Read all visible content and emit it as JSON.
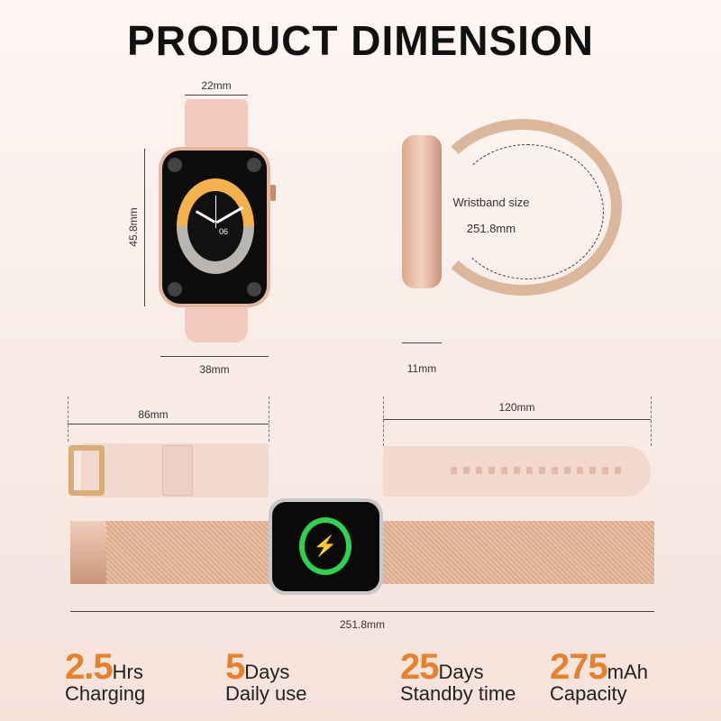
{
  "title": "PRODUCT DIMENSION",
  "front": {
    "band_width": "22mm",
    "height": "45.8mm",
    "width": "38mm",
    "time_digit": "06"
  },
  "side": {
    "wristband_label": "Wristband size",
    "wristband_value": "251.8mm",
    "thickness": "11mm"
  },
  "bands": {
    "left_length": "86mm",
    "right_length": "120mm",
    "total_length": "251.8mm"
  },
  "stats": [
    {
      "value": "2.5",
      "unit": "Hrs",
      "label": "Charging"
    },
    {
      "value": "5",
      "unit": "Days",
      "label": "Daily use"
    },
    {
      "value": "25",
      "unit": "Days",
      "label": "Standby time"
    },
    {
      "value": "275",
      "unit": "mAh",
      "label": "Capacity"
    }
  ],
  "colors": {
    "accent": "#e8812b",
    "band": "#f1cfc4",
    "gold": "#d7a98a",
    "charge": "#2fd14f"
  }
}
